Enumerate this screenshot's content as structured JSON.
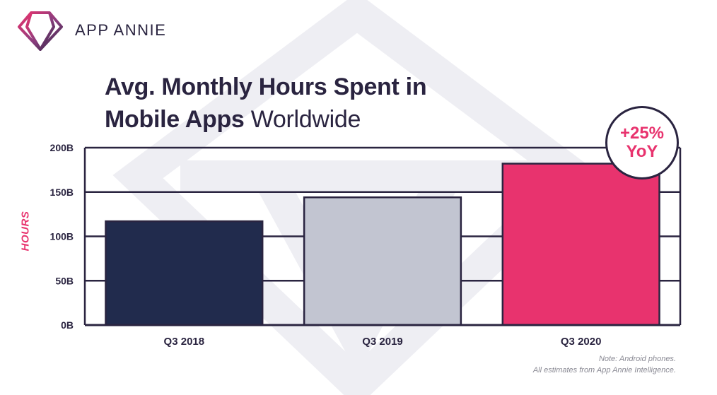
{
  "brand": {
    "name": "APP ANNIE"
  },
  "title": {
    "bold": "Avg. Monthly Hours Spent in",
    "bold2": "Mobile Apps",
    "light": "Worldwide"
  },
  "badge": {
    "line1": "+25%",
    "line2": "YoY"
  },
  "note": {
    "line1": "Note: Android phones.",
    "line2": "All estimates from App Annie Intelligence."
  },
  "chart_data": {
    "type": "bar",
    "title": "Avg. Monthly Hours Spent in Mobile Apps Worldwide",
    "xlabel": "",
    "ylabel": "HOURS",
    "categories": [
      "Q3 2018",
      "Q3 2019",
      "Q3 2020"
    ],
    "values": [
      117,
      144,
      182
    ],
    "colors": [
      "#212b4d",
      "#c2c5d1",
      "#e8336e"
    ],
    "ylim": [
      0,
      200
    ],
    "yticks": [
      0,
      50,
      100,
      150,
      200
    ],
    "ytick_labels": [
      "0B",
      "50B",
      "100B",
      "150B",
      "200B"
    ],
    "grid": true,
    "annotations": [
      "+25% YoY"
    ]
  }
}
